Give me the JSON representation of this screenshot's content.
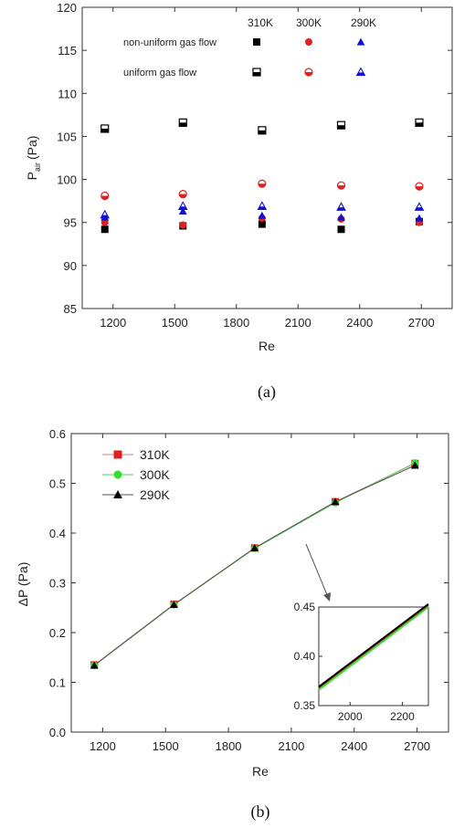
{
  "chart_data": [
    {
      "type": "scatter",
      "caption": "(a)",
      "xlabel": "Re",
      "ylabel_main": "P",
      "ylabel_sub": "air",
      "ylabel_unit": "(Pa)",
      "xlim": [
        1050,
        2850
      ],
      "ylim": [
        85,
        120
      ],
      "xticks": [
        1200,
        1500,
        1800,
        2100,
        2400,
        2700
      ],
      "yticks": [
        85,
        90,
        95,
        100,
        105,
        110,
        115,
        120
      ],
      "legend": {
        "rows": [
          "non-uniform gas flow",
          "uniform gas flow"
        ],
        "columns": [
          "310K",
          "300K",
          "290K"
        ]
      },
      "series": [
        {
          "key": "nu310",
          "flow": "non-uniform gas flow",
          "temp": "310K",
          "marker": "square",
          "fill": "solid",
          "color": "#000000",
          "x": [
            1160,
            1540,
            1925,
            2310,
            2690
          ],
          "y": [
            94.2,
            94.6,
            94.8,
            94.2,
            95.1
          ]
        },
        {
          "key": "nu300",
          "flow": "non-uniform gas flow",
          "temp": "300K",
          "marker": "circle",
          "fill": "solid",
          "color": "#e02020",
          "x": [
            1160,
            1540,
            1925,
            2310,
            2690
          ],
          "y": [
            95.0,
            94.7,
            95.5,
            95.4,
            95.0
          ]
        },
        {
          "key": "nu290",
          "flow": "non-uniform gas flow",
          "temp": "290K",
          "marker": "triangle",
          "fill": "solid",
          "color": "#1010d0",
          "x": [
            1160,
            1540,
            1925,
            2310,
            2690
          ],
          "y": [
            95.6,
            96.3,
            95.8,
            95.6,
            95.5
          ]
        },
        {
          "key": "u310",
          "flow": "uniform gas flow",
          "temp": "310K",
          "marker": "square",
          "fill": "half",
          "color": "#000000",
          "x": [
            1160,
            1540,
            1925,
            2310,
            2690
          ],
          "y": [
            105.9,
            106.6,
            105.7,
            106.3,
            106.6
          ]
        },
        {
          "key": "u300",
          "flow": "uniform gas flow",
          "temp": "300K",
          "marker": "circle",
          "fill": "half",
          "color": "#e02020",
          "x": [
            1160,
            1540,
            1925,
            2310,
            2690
          ],
          "y": [
            98.1,
            98.3,
            99.5,
            99.3,
            99.2
          ]
        },
        {
          "key": "u290",
          "flow": "uniform gas flow",
          "temp": "290K",
          "marker": "triangle",
          "fill": "half",
          "color": "#1010d0",
          "x": [
            1160,
            1540,
            1925,
            2310,
            2690
          ],
          "y": [
            95.9,
            96.9,
            96.9,
            96.8,
            96.8
          ]
        }
      ]
    },
    {
      "type": "line",
      "caption": "(b)",
      "xlabel": "Re",
      "ylabel": "ΔP (Pa)",
      "xlim": [
        1050,
        2850
      ],
      "ylim": [
        0.0,
        0.6
      ],
      "xticks": [
        1200,
        1500,
        1800,
        2100,
        2400,
        2700
      ],
      "yticks": [
        0.0,
        0.1,
        0.2,
        0.3,
        0.4,
        0.5,
        0.6
      ],
      "series": [
        {
          "name": "310K",
          "marker": "square",
          "color": "#e02020",
          "line_color": "#d08080",
          "x": [
            1160,
            1540,
            1925,
            2310,
            2690
          ],
          "y": [
            0.135,
            0.257,
            0.37,
            0.463,
            0.54
          ]
        },
        {
          "name": "300K",
          "marker": "circle",
          "color": "#30e030",
          "line_color": "#50d050",
          "x": [
            1160,
            1540,
            1925,
            2310,
            2690
          ],
          "y": [
            0.134,
            0.256,
            0.369,
            0.461,
            0.541
          ]
        },
        {
          "name": "290K",
          "marker": "triangle",
          "color": "#000000",
          "line_color": "#555555",
          "x": [
            1160,
            1540,
            1925,
            2310,
            2690
          ],
          "y": [
            0.134,
            0.256,
            0.37,
            0.463,
            0.536
          ]
        }
      ],
      "inset": {
        "xlim": [
          1880,
          2300
        ],
        "ylim": [
          0.35,
          0.45
        ],
        "xticks": [
          2000,
          2200
        ],
        "yticks": [
          0.35,
          0.4,
          0.45
        ],
        "lines": [
          {
            "color": "#e02020",
            "x": [
              1880,
              2300
            ],
            "y": [
              0.368,
              0.452
            ]
          },
          {
            "color": "#000000",
            "x": [
              1880,
              2300
            ],
            "y": [
              0.369,
              0.453
            ]
          },
          {
            "color": "#30e030",
            "x": [
              1880,
              2300
            ],
            "y": [
              0.366,
              0.45
            ]
          }
        ]
      }
    }
  ]
}
